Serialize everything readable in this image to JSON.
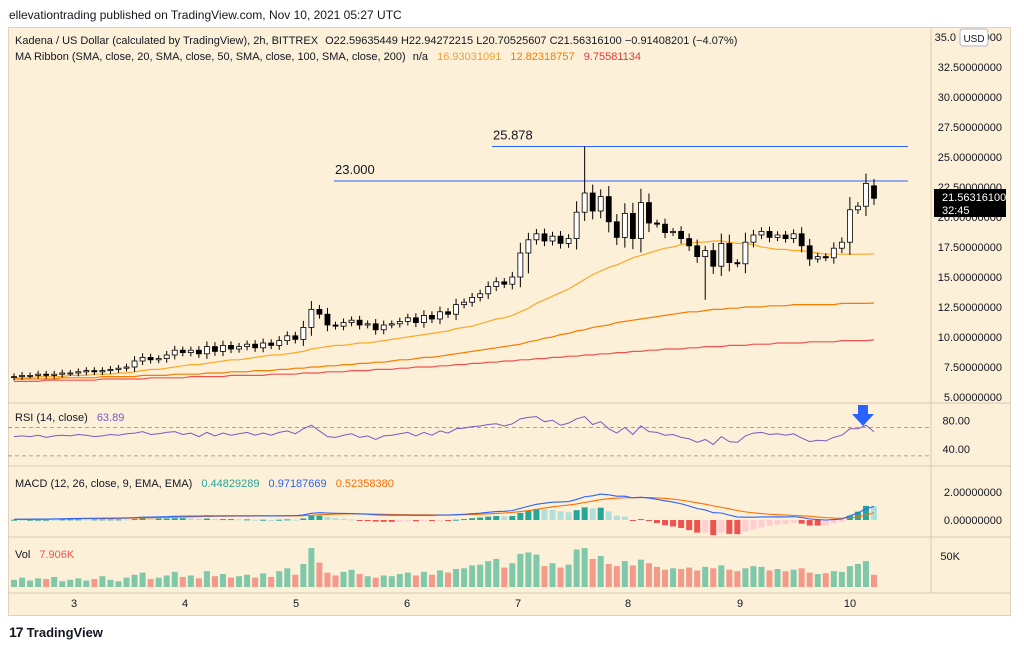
{
  "header": {
    "published_by": "ellevationtrading published on TradingView.com, Nov 10, 2021 05:27 UTC"
  },
  "footer": {
    "brand": "TradingView",
    "logo_glyph": "17"
  },
  "legend": {
    "symbol": "Kadena / US Dollar (calculated by TradingView), 2h, BITTREX",
    "ohlc": "O22.59635449  H22.94272215  L20.70525607  C21.56316100  −0.91408201 (−4.07%)",
    "ma_label": "MA Ribbon (SMA, close, 20, SMA, close, 50, SMA, close, 100, SMA, close, 200)",
    "ma_na": "n/a",
    "ma_values": [
      "16.93031091",
      "12.82318757",
      "9.75581134"
    ],
    "ma_colors": [
      "#ffa726",
      "#f57c00",
      "#ef5350"
    ],
    "rsi_label": "RSI (14, close)",
    "rsi_value": "63.89",
    "macd_label": "MACD (12, 26, close, 9, EMA, EMA)",
    "macd_values": [
      "0.44829289",
      "0.97187669",
      "0.52358380"
    ],
    "vol_label": "Vol",
    "vol_value": "7.906K"
  },
  "currency_button": "USD",
  "price_tag": {
    "price": "21.56316100",
    "countdown": "32:45"
  },
  "annotations": [
    {
      "label": "25.878",
      "price": 25.878
    },
    {
      "label": "23.000",
      "price": 23.0
    }
  ],
  "colors": {
    "up": "#ffffff",
    "down": "#000000",
    "bg": "#fdf0d9",
    "rsi": "#7e57c2",
    "macd": "#2962ff",
    "signal": "#ff6d00",
    "hist_up_strong": "#26a69a",
    "hist_up_weak": "#b2dfdb",
    "hist_down_strong": "#ef5350",
    "hist_down_weak": "#ffcdd2",
    "vol_up": "#7fc8a9",
    "vol_down": "#f39a8a",
    "hline": "#2962ff",
    "arrow": "#2962ff"
  },
  "chart_data": [
    {
      "type": "candlestick",
      "title": "Kadena / US Dollar (calculated by TradingView), 2h, BITTREX",
      "x_ticks": [
        "3",
        "4",
        "5",
        "6",
        "7",
        "8",
        "9",
        "10"
      ],
      "y_ticks": [
        "35.00000000",
        "32.50000000",
        "30.00000000",
        "27.50000000",
        "25.00000000",
        "22.50000000",
        "20.00000000",
        "17.50000000",
        "15.00000000",
        "12.50000000",
        "10.00000000",
        "7.50000000",
        "5.00000000"
      ],
      "ylim": [
        5,
        35
      ],
      "close": [
        6.7,
        6.8,
        6.8,
        6.9,
        6.8,
        6.9,
        7.0,
        7.0,
        7.1,
        7.2,
        7.1,
        7.2,
        7.3,
        7.4,
        7.5,
        8.0,
        8.3,
        8.1,
        8.2,
        8.5,
        8.9,
        8.7,
        8.9,
        8.6,
        9.2,
        8.8,
        9.3,
        9.0,
        9.2,
        9.4,
        9.1,
        9.5,
        9.3,
        9.7,
        10.1,
        9.8,
        10.8,
        12.3,
        11.9,
        11.0,
        10.9,
        11.2,
        11.4,
        11.0,
        11.1,
        10.6,
        11.0,
        11.1,
        11.3,
        11.6,
        11.2,
        11.8,
        11.5,
        12.1,
        11.9,
        12.7,
        12.9,
        13.3,
        13.6,
        14.2,
        14.6,
        14.4,
        15.0,
        17.0,
        18.1,
        18.6,
        18.0,
        18.4,
        17.8,
        18.2,
        20.4,
        22.0,
        20.5,
        21.7,
        19.6,
        18.3,
        20.3,
        18.2,
        21.2,
        19.5,
        19.4,
        18.7,
        18.8,
        18.2,
        17.6,
        16.7,
        17.2,
        15.9,
        17.8,
        16.2,
        16.1,
        17.9,
        18.5,
        18.8,
        18.3,
        18.5,
        18.2,
        18.6,
        17.6,
        16.5,
        16.7,
        16.6,
        17.4,
        17.9,
        20.6,
        20.9,
        22.8,
        21.56
      ],
      "macd": [
        0.05,
        0.06,
        0.06,
        0.07,
        0.07,
        0.08,
        0.09,
        0.1,
        0.11,
        0.12,
        0.12,
        0.13,
        0.13,
        0.14,
        0.15,
        0.17,
        0.2,
        0.21,
        0.22,
        0.24,
        0.26,
        0.27,
        0.28,
        0.28,
        0.3,
        0.29,
        0.3,
        0.3,
        0.3,
        0.3,
        0.3,
        0.3,
        0.29,
        0.3,
        0.31,
        0.31,
        0.36,
        0.48,
        0.52,
        0.5,
        0.48,
        0.47,
        0.46,
        0.43,
        0.41,
        0.37,
        0.35,
        0.34,
        0.34,
        0.34,
        0.33,
        0.34,
        0.33,
        0.35,
        0.35,
        0.38,
        0.41,
        0.45,
        0.49,
        0.55,
        0.6,
        0.62,
        0.67,
        0.83,
        0.98,
        1.12,
        1.2,
        1.27,
        1.29,
        1.32,
        1.47,
        1.66,
        1.73,
        1.85,
        1.8,
        1.7,
        1.7,
        1.58,
        1.63,
        1.57,
        1.48,
        1.37,
        1.28,
        1.16,
        1.0,
        0.82,
        0.72,
        0.52,
        0.5,
        0.35,
        0.22,
        0.2,
        0.2,
        0.22,
        0.22,
        0.23,
        0.22,
        0.24,
        0.18,
        0.08,
        0.03,
        0.0,
        0.03,
        0.07,
        0.3,
        0.5,
        0.8,
        0.97
      ],
      "signal": [
        0.04,
        0.05,
        0.05,
        0.06,
        0.06,
        0.07,
        0.07,
        0.08,
        0.09,
        0.1,
        0.1,
        0.11,
        0.11,
        0.12,
        0.13,
        0.14,
        0.15,
        0.16,
        0.17,
        0.19,
        0.2,
        0.21,
        0.23,
        0.24,
        0.25,
        0.26,
        0.27,
        0.27,
        0.28,
        0.28,
        0.29,
        0.29,
        0.29,
        0.29,
        0.29,
        0.3,
        0.31,
        0.34,
        0.38,
        0.4,
        0.42,
        0.43,
        0.44,
        0.44,
        0.43,
        0.42,
        0.41,
        0.4,
        0.39,
        0.38,
        0.37,
        0.37,
        0.36,
        0.36,
        0.36,
        0.37,
        0.38,
        0.39,
        0.41,
        0.44,
        0.47,
        0.5,
        0.54,
        0.6,
        0.67,
        0.76,
        0.85,
        0.94,
        1.01,
        1.07,
        1.15,
        1.25,
        1.35,
        1.45,
        1.52,
        1.56,
        1.59,
        1.59,
        1.6,
        1.6,
        1.58,
        1.54,
        1.49,
        1.42,
        1.33,
        1.23,
        1.13,
        1.01,
        0.91,
        0.8,
        0.68,
        0.58,
        0.51,
        0.46,
        0.41,
        0.38,
        0.35,
        0.33,
        0.3,
        0.26,
        0.21,
        0.17,
        0.14,
        0.13,
        0.16,
        0.23,
        0.34,
        0.52
      ],
      "rsi": [
        57,
        58,
        57,
        59,
        56,
        58,
        59,
        58,
        60,
        59,
        57,
        58,
        60,
        59,
        61,
        62,
        64,
        60,
        61,
        63,
        64,
        60,
        62,
        57,
        63,
        58,
        62,
        59,
        61,
        63,
        59,
        62,
        59,
        63,
        65,
        61,
        68,
        73,
        65,
        57,
        56,
        59,
        61,
        56,
        58,
        53,
        58,
        59,
        61,
        63,
        58,
        63,
        59,
        65,
        62,
        68,
        69,
        71,
        72,
        74,
        75,
        72,
        75,
        82,
        84,
        85,
        78,
        80,
        73,
        76,
        82,
        85,
        74,
        78,
        68,
        62,
        70,
        60,
        72,
        64,
        63,
        59,
        60,
        56,
        54,
        49,
        53,
        46,
        57,
        50,
        49,
        58,
        62,
        63,
        60,
        61,
        59,
        61,
        55,
        50,
        52,
        51,
        56,
        59,
        68,
        68,
        73,
        63.89
      ],
      "volume": [
        1.0,
        1.3,
        0.9,
        1.2,
        1.1,
        1.4,
        0.8,
        1.0,
        1.2,
        0.9,
        1.1,
        1.5,
        1.0,
        0.8,
        1.3,
        1.7,
        2.0,
        1.1,
        1.3,
        1.6,
        2.1,
        1.4,
        1.6,
        1.2,
        2.2,
        1.5,
        1.8,
        1.3,
        1.5,
        1.7,
        1.3,
        1.9,
        1.4,
        2.2,
        2.6,
        1.7,
        3.2,
        5.4,
        3.4,
        2.0,
        1.6,
        2.1,
        2.4,
        1.8,
        1.5,
        1.3,
        1.6,
        1.5,
        1.8,
        2.0,
        1.6,
        2.1,
        1.7,
        2.3,
        2.0,
        2.5,
        2.6,
        3.0,
        3.1,
        3.6,
        3.9,
        2.7,
        3.3,
        4.6,
        4.8,
        4.5,
        2.9,
        3.3,
        2.7,
        3.1,
        5.2,
        5.4,
        3.9,
        4.3,
        3.2,
        2.9,
        3.6,
        3.0,
        3.8,
        3.3,
        2.8,
        2.4,
        2.6,
        2.5,
        2.7,
        2.3,
        2.8,
        2.6,
        3.0,
        2.4,
        2.2,
        2.6,
        2.9,
        2.8,
        2.3,
        2.5,
        2.2,
        2.4,
        2.6,
        2.0,
        1.8,
        1.9,
        2.2,
        2.1,
        2.9,
        3.2,
        3.6,
        1.7
      ],
      "ma_20": [
        6.6,
        6.6,
        6.6,
        6.7,
        6.7,
        6.7,
        6.7,
        6.8,
        6.8,
        6.8,
        6.9,
        6.9,
        6.9,
        7.0,
        7.0,
        7.1,
        7.2,
        7.3,
        7.3,
        7.4,
        7.5,
        7.6,
        7.7,
        7.7,
        7.8,
        7.9,
        8.0,
        8.1,
        8.1,
        8.2,
        8.3,
        8.4,
        8.5,
        8.5,
        8.6,
        8.7,
        8.8,
        9.0,
        9.1,
        9.2,
        9.3,
        9.3,
        9.4,
        9.5,
        9.5,
        9.6,
        9.7,
        9.8,
        9.9,
        10.0,
        10.1,
        10.2,
        10.3,
        10.4,
        10.5,
        10.7,
        10.8,
        10.9,
        11.1,
        11.3,
        11.5,
        11.6,
        11.8,
        12.1,
        12.4,
        12.8,
        13.1,
        13.4,
        13.7,
        14.0,
        14.4,
        14.8,
        15.2,
        15.5,
        15.8,
        16.0,
        16.3,
        16.6,
        16.8,
        17.0,
        17.2,
        17.4,
        17.5,
        17.7,
        17.8,
        17.9,
        17.9,
        18.0,
        18.0,
        17.9,
        17.8,
        17.8,
        17.7,
        17.5,
        17.4,
        17.3,
        17.3,
        17.2,
        17.2,
        17.1,
        17.0,
        16.9,
        16.9,
        16.9,
        16.9,
        16.9,
        16.9,
        16.93
      ],
      "ma_50": [
        6.5,
        6.5,
        6.5,
        6.5,
        6.5,
        6.5,
        6.6,
        6.6,
        6.6,
        6.6,
        6.6,
        6.7,
        6.7,
        6.7,
        6.7,
        6.7,
        6.8,
        6.8,
        6.8,
        6.8,
        6.9,
        6.9,
        6.9,
        6.9,
        7.0,
        7.0,
        7.0,
        7.1,
        7.1,
        7.1,
        7.2,
        7.2,
        7.2,
        7.3,
        7.3,
        7.4,
        7.4,
        7.5,
        7.5,
        7.6,
        7.6,
        7.7,
        7.7,
        7.8,
        7.8,
        7.9,
        7.9,
        8.0,
        8.1,
        8.1,
        8.2,
        8.3,
        8.3,
        8.4,
        8.5,
        8.6,
        8.7,
        8.8,
        8.9,
        9.0,
        9.1,
        9.2,
        9.3,
        9.4,
        9.6,
        9.7,
        9.9,
        10.0,
        10.2,
        10.3,
        10.5,
        10.6,
        10.8,
        10.9,
        11.0,
        11.2,
        11.3,
        11.4,
        11.5,
        11.6,
        11.7,
        11.8,
        11.9,
        12.0,
        12.1,
        12.1,
        12.2,
        12.3,
        12.3,
        12.4,
        12.4,
        12.5,
        12.5,
        12.5,
        12.6,
        12.6,
        12.6,
        12.7,
        12.7,
        12.7,
        12.7,
        12.7,
        12.7,
        12.8,
        12.8,
        12.8,
        12.8,
        12.82
      ],
      "ma_100": [
        6.3,
        6.3,
        6.3,
        6.3,
        6.4,
        6.4,
        6.4,
        6.4,
        6.4,
        6.4,
        6.4,
        6.5,
        6.5,
        6.5,
        6.5,
        6.5,
        6.5,
        6.6,
        6.6,
        6.6,
        6.6,
        6.6,
        6.7,
        6.7,
        6.7,
        6.7,
        6.7,
        6.8,
        6.8,
        6.8,
        6.8,
        6.8,
        6.9,
        6.9,
        6.9,
        6.9,
        7.0,
        7.0,
        7.0,
        7.1,
        7.1,
        7.1,
        7.2,
        7.2,
        7.2,
        7.3,
        7.3,
        7.3,
        7.4,
        7.4,
        7.5,
        7.5,
        7.5,
        7.6,
        7.6,
        7.7,
        7.7,
        7.8,
        7.8,
        7.9,
        7.9,
        8.0,
        8.0,
        8.1,
        8.1,
        8.2,
        8.2,
        8.3,
        8.3,
        8.4,
        8.4,
        8.5,
        8.5,
        8.6,
        8.6,
        8.7,
        8.7,
        8.8,
        8.8,
        8.9,
        8.9,
        9.0,
        9.0,
        9.0,
        9.1,
        9.1,
        9.2,
        9.2,
        9.2,
        9.3,
        9.3,
        9.3,
        9.4,
        9.4,
        9.4,
        9.5,
        9.5,
        9.5,
        9.5,
        9.6,
        9.6,
        9.6,
        9.6,
        9.7,
        9.7,
        9.7,
        9.7,
        9.76
      ]
    }
  ]
}
